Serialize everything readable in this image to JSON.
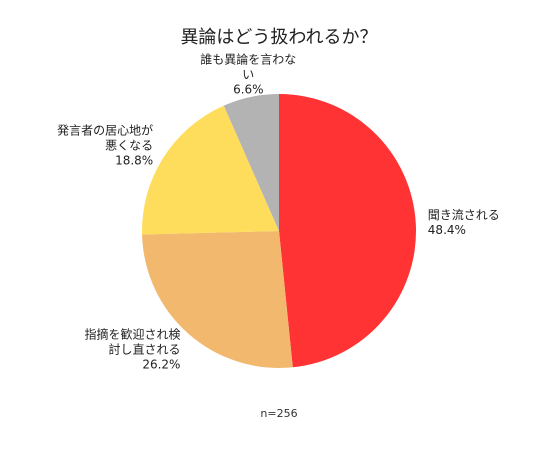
{
  "chart_data": {
    "type": "pie",
    "title": "異論はどう扱われるか？",
    "categories": [
      "聞き流される",
      "指摘を歓迎され検討し直される",
      "発言者の居心地が悪くなる",
      "誰も異論を言わない"
    ],
    "values": [
      48.4,
      26.2,
      18.8,
      6.6
    ],
    "value_labels": [
      "48.4%",
      "26.2%",
      "18.8%",
      "6.6%"
    ],
    "colors": [
      "#ff3333",
      "#f2b96e",
      "#ffdd5c",
      "#b3b3b3"
    ],
    "note": "n=256"
  }
}
